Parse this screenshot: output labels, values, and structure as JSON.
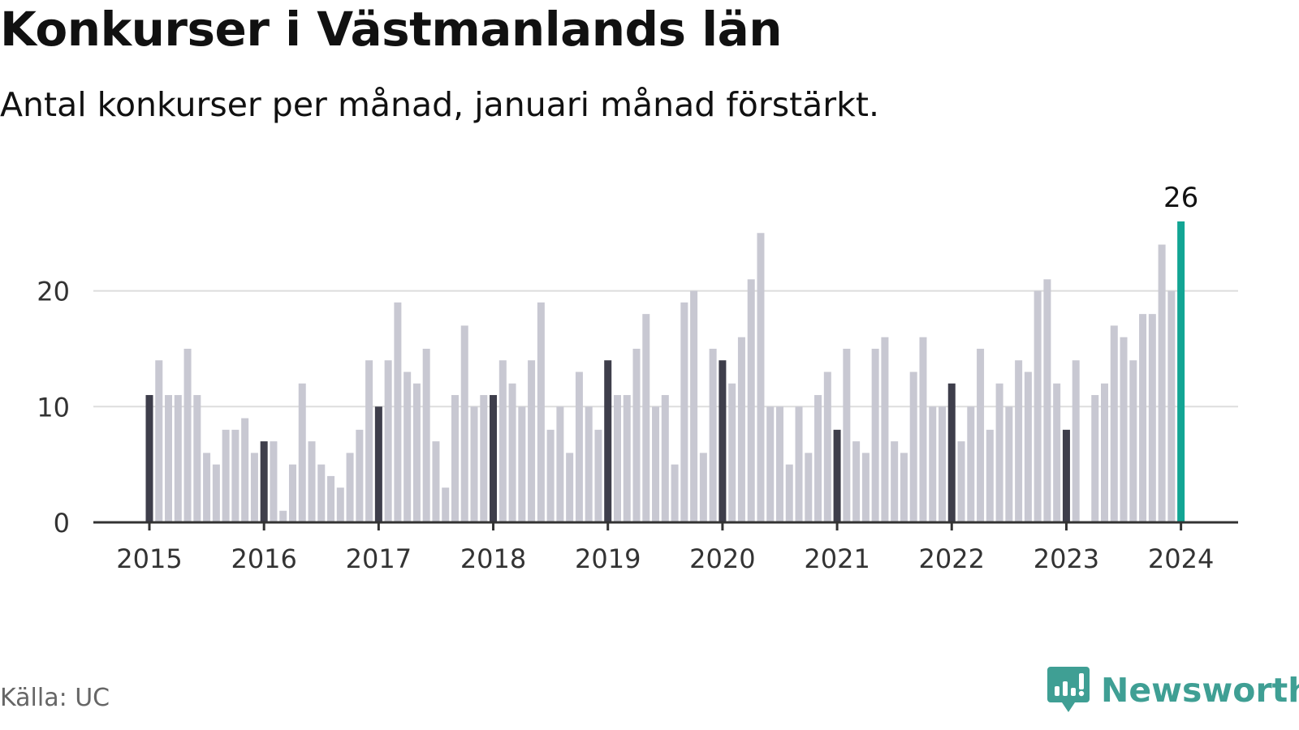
{
  "header": {
    "title": "Konkurser i Västmanlands län",
    "subtitle": "Antal konkurser per månad, januari månad förstärkt."
  },
  "footer": {
    "source": "Källa: UC",
    "brand": "Newsworthy"
  },
  "colors": {
    "january": "#3e3e4b",
    "month": "#c8c8d2",
    "latest": "#12a594",
    "gridline": "#dddddd",
    "axis": "#333333",
    "brand": "#3f9f94"
  },
  "chart_data": {
    "type": "bar",
    "title": "Konkurser i Västmanlands län",
    "subtitle": "Antal konkurser per månad, januari månad förstärkt.",
    "start": "2015-01",
    "ylim": [
      0,
      26
    ],
    "yticks": [
      0,
      10,
      20
    ],
    "year_labels": [
      "2015",
      "2016",
      "2017",
      "2018",
      "2019",
      "2020",
      "2021",
      "2022",
      "2023",
      "2024"
    ],
    "grid": true,
    "highlight_label": "26",
    "series": [
      {
        "year": "2015",
        "values": [
          11,
          14,
          11,
          11,
          15,
          11,
          6,
          5,
          8,
          8,
          9,
          6
        ]
      },
      {
        "year": "2016",
        "values": [
          7,
          7,
          1,
          5,
          12,
          7,
          5,
          4,
          3,
          6,
          8,
          14
        ]
      },
      {
        "year": "2017",
        "values": [
          10,
          14,
          19,
          13,
          12,
          15,
          7,
          3,
          11,
          17,
          10,
          11
        ]
      },
      {
        "year": "2018",
        "values": [
          11,
          14,
          12,
          10,
          14,
          19,
          8,
          10,
          6,
          13,
          10,
          8
        ]
      },
      {
        "year": "2019",
        "values": [
          14,
          11,
          11,
          15,
          18,
          10,
          11,
          5,
          19,
          20,
          6,
          15
        ]
      },
      {
        "year": "2020",
        "values": [
          14,
          12,
          16,
          21,
          25,
          10,
          10,
          5,
          10,
          6,
          11,
          13
        ]
      },
      {
        "year": "2021",
        "values": [
          8,
          15,
          7,
          6,
          15,
          16,
          7,
          6,
          13,
          16,
          10,
          10
        ]
      },
      {
        "year": "2022",
        "values": [
          12,
          7,
          10,
          15,
          8,
          12,
          10,
          14,
          13,
          20,
          21,
          12
        ]
      },
      {
        "year": "2023",
        "values": [
          8,
          14,
          0,
          11,
          12,
          17,
          16,
          14,
          18,
          18,
          24,
          20
        ]
      },
      {
        "year": "2024",
        "values": [
          26
        ]
      }
    ]
  }
}
